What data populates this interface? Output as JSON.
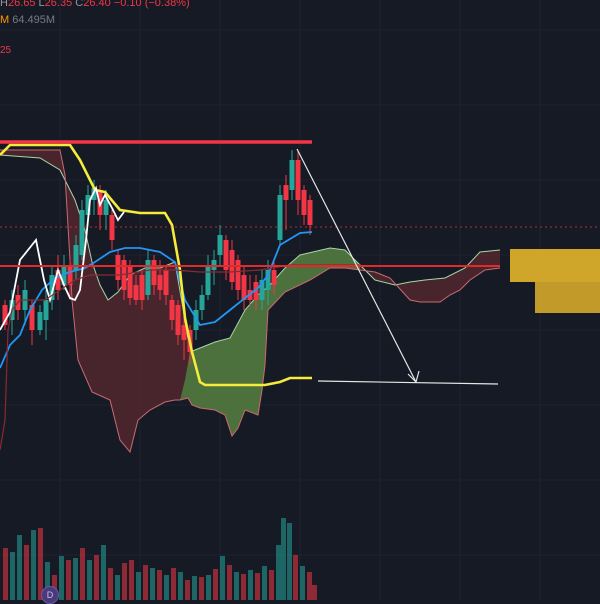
{
  "legend": {
    "high_label": "H",
    "high": "26.65",
    "low_label": "L",
    "low": "26.35",
    "close_label": "C",
    "close": "26.40",
    "change": "−0.10 (−0.38%)",
    "volume_prefix": "M",
    "volume": "64.495M",
    "indicator_tail": "25"
  },
  "badge": {
    "text": "D"
  },
  "colors": {
    "background": "#161a25",
    "grid": "#1f2330",
    "up_candle": "#26a69a",
    "down_candle": "#f23645",
    "tenkan": "#2196f3",
    "kijun": "#f5eb3b",
    "chikou": "#ffffff",
    "span_a": "#a5d6a7",
    "span_b": "#c96a70",
    "kumo_bull": "#4c7a3f",
    "kumo_bear": "#5a2a30",
    "resistance": "#f23645",
    "support": "#e32a2a",
    "target_zone": "#e0b22a",
    "arrow": "#e6e6e6"
  }
}
